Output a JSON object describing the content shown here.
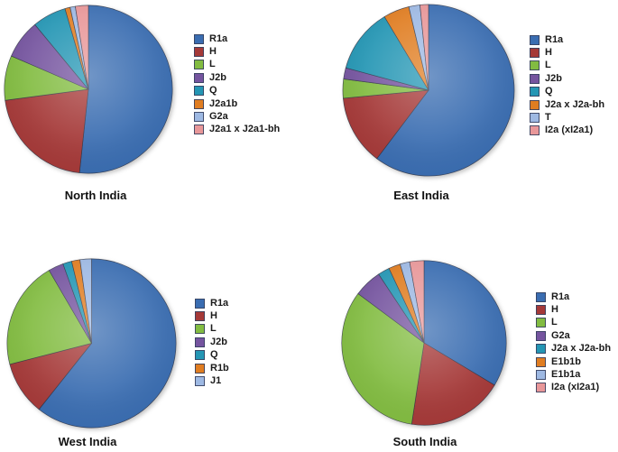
{
  "page": {
    "background": "#ffffff"
  },
  "chart_data": [
    {
      "type": "pie",
      "title": "North India",
      "legend_position": "right",
      "start_angle_deg": 0,
      "direction": "clockwise",
      "unit": "percent",
      "series": [
        {
          "name": "R1a",
          "value": 51.7,
          "color": "#3A6DB1"
        },
        {
          "name": "H",
          "value": 21.2,
          "color": "#A53938"
        },
        {
          "name": "L",
          "value": 8.6,
          "color": "#82BC41"
        },
        {
          "name": "J2b",
          "value": 7.5,
          "color": "#75549F"
        },
        {
          "name": "Q",
          "value": 6.5,
          "color": "#2496B4"
        },
        {
          "name": "J2a1b",
          "value": 1.0,
          "color": "#E07D21"
        },
        {
          "name": "G2a",
          "value": 1.0,
          "color": "#9EB9E3"
        },
        {
          "name": "J2a1 x J2a1-bh",
          "value": 2.5,
          "color": "#E89799"
        }
      ]
    },
    {
      "type": "pie",
      "title": "East India",
      "legend_position": "right",
      "start_angle_deg": 0,
      "direction": "clockwise",
      "unit": "percent",
      "series": [
        {
          "name": "R1a",
          "value": 60.3,
          "color": "#3A6DB1"
        },
        {
          "name": "H",
          "value": 13.2,
          "color": "#A53938"
        },
        {
          "name": "L",
          "value": 3.6,
          "color": "#82BC41"
        },
        {
          "name": "J2b",
          "value": 2.1,
          "color": "#75549F"
        },
        {
          "name": "Q",
          "value": 12.2,
          "color": "#2496B4"
        },
        {
          "name": "J2a x J2a-bh",
          "value": 4.9,
          "color": "#E07D21"
        },
        {
          "name": "T",
          "value": 2.1,
          "color": "#9EB9E3"
        },
        {
          "name": "I2a (xI2a1)",
          "value": 1.6,
          "color": "#E89799"
        }
      ]
    },
    {
      "type": "pie",
      "title": "West India",
      "legend_position": "right",
      "start_angle_deg": 0,
      "direction": "clockwise",
      "unit": "percent",
      "series": [
        {
          "name": "R1a",
          "value": 60.7,
          "color": "#3A6DB1"
        },
        {
          "name": "H",
          "value": 10.3,
          "color": "#A53938"
        },
        {
          "name": "L",
          "value": 20.6,
          "color": "#82BC41"
        },
        {
          "name": "J2b",
          "value": 2.9,
          "color": "#75549F"
        },
        {
          "name": "Q",
          "value": 1.7,
          "color": "#2496B4"
        },
        {
          "name": "R1b",
          "value": 1.6,
          "color": "#E07D21"
        },
        {
          "name": "J1",
          "value": 2.2,
          "color": "#9EB9E3"
        }
      ]
    },
    {
      "type": "pie",
      "title": "South India",
      "legend_position": "right",
      "start_angle_deg": 0,
      "direction": "clockwise",
      "unit": "percent",
      "series": [
        {
          "name": "R1a",
          "value": 33.6,
          "color": "#3A6DB1"
        },
        {
          "name": "H",
          "value": 18.8,
          "color": "#A53938"
        },
        {
          "name": "L",
          "value": 32.8,
          "color": "#82BC41"
        },
        {
          "name": "G2a",
          "value": 5.5,
          "color": "#75549F"
        },
        {
          "name": "J2a x J2a-bh",
          "value": 2.3,
          "color": "#2496B4"
        },
        {
          "name": "E1b1b",
          "value": 2.3,
          "color": "#E07D21"
        },
        {
          "name": "E1b1a",
          "value": 1.9,
          "color": "#9EB9E3"
        },
        {
          "name": "I2a (xI2a1)",
          "value": 2.8,
          "color": "#E89799"
        }
      ]
    }
  ]
}
